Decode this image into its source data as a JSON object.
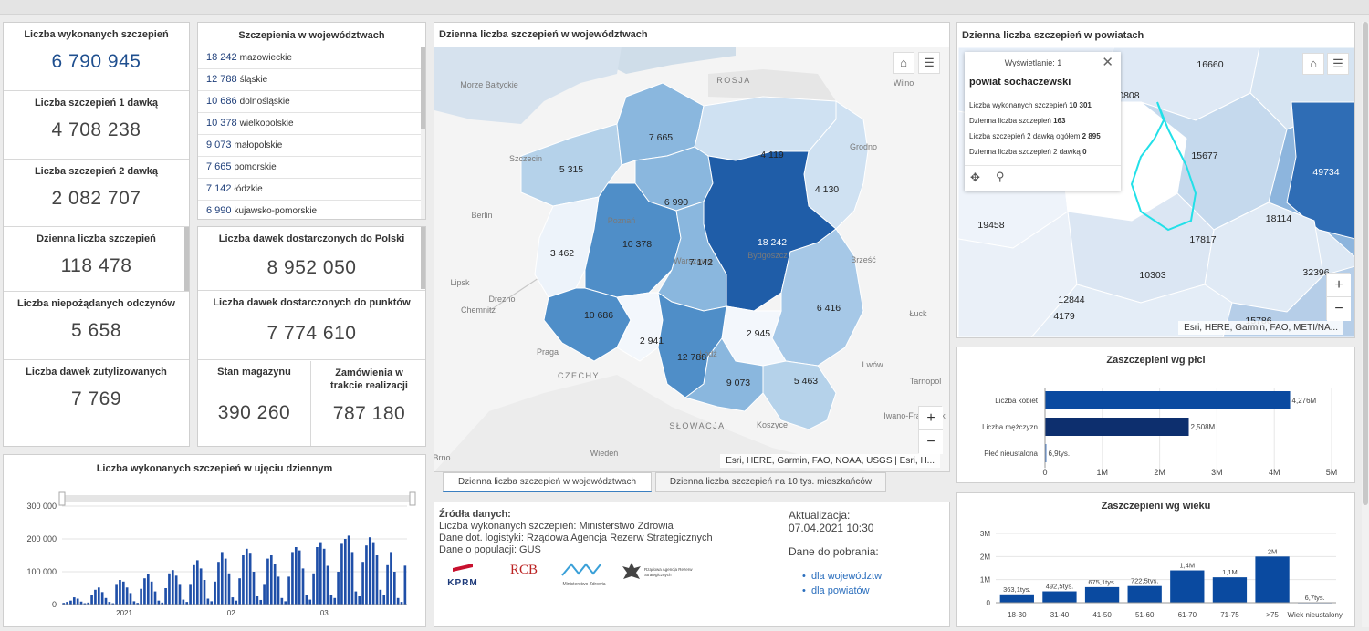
{
  "kpis": {
    "total": {
      "label": "Liczba wykonanych szczepień",
      "value": "6 790 945"
    },
    "dose1": {
      "label": "Liczba szczepień 1 dawką",
      "value": "4 708 238"
    },
    "dose2": {
      "label": "Liczba szczepień 2 dawką",
      "value": "2 082 707"
    },
    "daily": {
      "label": "Dzienna liczba szczepień",
      "value": "118 478"
    },
    "adverse": {
      "label": "Liczba niepożądanych odczynów",
      "value": "5 658"
    },
    "utilized": {
      "label": "Liczba dawek zutylizowanych",
      "value": "7 769"
    }
  },
  "regions_list": {
    "title": "Szczepienia w województwach",
    "items": [
      {
        "num": "18 242",
        "name": "mazowieckie"
      },
      {
        "num": "12 788",
        "name": "śląskie"
      },
      {
        "num": "10 686",
        "name": "dolnośląskie"
      },
      {
        "num": "10 378",
        "name": "wielkopolskie"
      },
      {
        "num": "9 073",
        "name": "małopolskie"
      },
      {
        "num": "7 665",
        "name": "pomorskie"
      },
      {
        "num": "7 142",
        "name": "łódzkie"
      },
      {
        "num": "6 990",
        "name": "kujawsko-pomorskie"
      }
    ]
  },
  "logistics": {
    "delivered_poland": {
      "label": "Liczba dawek dostarczonych do Polski",
      "value": "8 952 050"
    },
    "delivered_points": {
      "label": "Liczba dawek dostarczonych do punktów",
      "value": "7 774 610"
    },
    "stock": {
      "label": "Stan magazynu",
      "value": "390 260"
    },
    "orders": {
      "label": "Zamówienia w trakcie realizacji",
      "value": "787 180"
    }
  },
  "map_main": {
    "title": "Dzienna liczba szczepień w województwach",
    "attribution": "Esri, HERE, Garmin, FAO, NOAA, USGS | Esri, H...",
    "zoom_in": "+",
    "zoom_out": "−",
    "places": [
      "Morze Bałtyckie",
      "ROSJA",
      "Wilno",
      "Grodno",
      "Berlin",
      "Brześć",
      "Lipsk",
      "Drezno",
      "Chemnitz",
      "Praga",
      "CZECHY",
      "Łuck",
      "Lwów",
      "Tarnopol",
      "Iwano-Frankiwsk",
      "SŁOWACJA",
      "Koszyce",
      "Wiedeń",
      "Brno",
      "Szczecin",
      "Poznań",
      "Bydgoszcz",
      "Warszawa",
      "Łódź",
      "Kraków"
    ],
    "regions": [
      {
        "name": "zachodniopomorskie",
        "value": "5 315",
        "color": "#b5d2ea"
      },
      {
        "name": "pomorskie",
        "value": "7 665",
        "color": "#8ab7de"
      },
      {
        "name": "warmińsko-mazurskie",
        "value": "4 119",
        "color": "#cfe1f2"
      },
      {
        "name": "podlaskie",
        "value": "4 130",
        "color": "#cfe1f2"
      },
      {
        "name": "lubuskie",
        "value": "3 462",
        "color": "#edf3fa"
      },
      {
        "name": "kujawsko-pomorskie",
        "value": "6 990",
        "color": "#8ab7de"
      },
      {
        "name": "wielkopolskie",
        "value": "10 378",
        "color": "#4f8ec8"
      },
      {
        "name": "mazowieckie",
        "value": "18 242",
        "color": "#1f5da8"
      },
      {
        "name": "łódzkie",
        "value": "7 142",
        "color": "#8ab7de"
      },
      {
        "name": "lubelskie",
        "value": "6 416",
        "color": "#a6c8e7"
      },
      {
        "name": "dolnośląskie",
        "value": "10 686",
        "color": "#4f8ec8"
      },
      {
        "name": "opolskie",
        "value": "2 941",
        "color": "#f3f7fc"
      },
      {
        "name": "świętokrzyskie",
        "value": "2 945",
        "color": "#f3f7fc"
      },
      {
        "name": "śląskie",
        "value": "12 788",
        "color": "#4f8ec8"
      },
      {
        "name": "małopolskie",
        "value": "9 073",
        "color": "#8ab7de"
      },
      {
        "name": "podkarpackie",
        "value": "5 463",
        "color": "#b5d2ea"
      }
    ],
    "tabs": [
      "Dzienna liczba szczepień w województwach",
      "Dzienna liczba szczepień na 10 tys. mieszkańców"
    ]
  },
  "map_county": {
    "title": "Dzienna liczba szczepień w powiatach",
    "attribution": "Esri, HERE, Garmin, FAO, METI/NA...",
    "zoom_in": "+",
    "zoom_out": "−",
    "labels": [
      "16660",
      "10808",
      "15677",
      "49734",
      "19458",
      "18114",
      "17817",
      "10303",
      "32396",
      "12844",
      "4179",
      "15786"
    ],
    "popup": {
      "header": "Wyświetlanie: 1",
      "title": "powiat sochaczewski",
      "rows": [
        {
          "label": "Liczba wykonanych szczepień",
          "value": "10 301"
        },
        {
          "label": "Dzienna liczba szczepień",
          "value": "163"
        },
        {
          "label": "Liczba szczepień 2 dawką ogółem",
          "value": "2 895"
        },
        {
          "label": "Dzienna liczba szczepień 2 dawką",
          "value": "0"
        }
      ]
    }
  },
  "daily_chart": {
    "title": "Liczba wykonanych szczepień w ujęciu dziennym",
    "chart_data": {
      "type": "bar",
      "title": "Liczba wykonanych szczepień w ujęciu dziennym",
      "ylim": [
        0,
        300000
      ],
      "yticks": [
        "300 000",
        "200 000",
        "100 000",
        "0"
      ],
      "yticks_values": [
        300000,
        200000,
        100000,
        0
      ],
      "xticks": [
        "2021",
        "02",
        "03"
      ],
      "values": [
        5000,
        8000,
        12000,
        22000,
        18000,
        9000,
        4000,
        6000,
        30000,
        45000,
        52000,
        38000,
        20000,
        8000,
        4000,
        60000,
        75000,
        70000,
        52000,
        35000,
        10000,
        5000,
        48000,
        80000,
        92000,
        70000,
        40000,
        12000,
        6000,
        50000,
        95000,
        105000,
        88000,
        60000,
        15000,
        8000,
        60000,
        120000,
        135000,
        110000,
        75000,
        18000,
        10000,
        70000,
        130000,
        160000,
        140000,
        95000,
        22000,
        12000,
        80000,
        150000,
        170000,
        155000,
        100000,
        25000,
        14000,
        60000,
        140000,
        150000,
        125000,
        85000,
        20000,
        10000,
        85000,
        160000,
        175000,
        165000,
        110000,
        28000,
        15000,
        95000,
        175000,
        190000,
        170000,
        118000,
        30000,
        20000,
        100000,
        185000,
        200000,
        210000,
        160000,
        40000,
        25000,
        130000,
        180000,
        205000,
        190000,
        150000,
        45000,
        30000,
        120000,
        160000,
        100000,
        20000,
        8000,
        118478
      ]
    }
  },
  "sources": {
    "title": "Źródła danych:",
    "lines": [
      "Liczba wykonanych szczepień: Ministerstwo Zdrowia",
      "Dane dot. logistyki: Rządowa Agencja Rezerw Strategicznych",
      "Dane o populacji: GUS"
    ],
    "logos": [
      "KPRM",
      "RCB",
      "Ministerstwo Zdrowia",
      "Rządowa Agencja Rezerw Strategicznych"
    ],
    "update_label": "Aktualizacja:",
    "update_value": "07.04.2021 10:30",
    "download_label": "Dane do pobrania:",
    "links": [
      "dla województw",
      "dla powiatów"
    ]
  },
  "gender_chart": {
    "title": "Zaszczepieni wg płci",
    "chart_data": {
      "type": "bar",
      "orientation": "horizontal",
      "title": "Zaszczepieni wg płci",
      "categories": [
        "Liczba kobiet",
        "Liczba mężczyzn",
        "Płeć nieustalona"
      ],
      "values": [
        4276000,
        2508000,
        6900
      ],
      "data_labels": [
        "4,276M",
        "2,508M",
        "6,9tys."
      ],
      "xlim": [
        0,
        5000000
      ],
      "xticks": [
        "0",
        "1M",
        "2M",
        "3M",
        "4M",
        "5M"
      ],
      "colors": [
        "#0a4aa0",
        "#0d2f6e",
        "#4e7fc4"
      ]
    }
  },
  "age_chart": {
    "title": "Zaszczepieni wg wieku",
    "chart_data": {
      "type": "bar",
      "title": "Zaszczepieni wg wieku",
      "categories": [
        "18-30",
        "31-40",
        "41-50",
        "51-60",
        "61-70",
        "71-75",
        ">75",
        "Wiek nieustalony"
      ],
      "values": [
        363100,
        492500,
        675100,
        722500,
        1400000,
        1100000,
        2000000,
        6700
      ],
      "data_labels": [
        "363,1tys.",
        "492,5tys.",
        "675,1tys.",
        "722,5tys.",
        "1,4M",
        "1,1M",
        "2M",
        "6,7tys."
      ],
      "ylim": [
        0,
        3000000
      ],
      "yticks": [
        "3M",
        "2M",
        "1M",
        "0"
      ],
      "yticks_values": [
        3000000,
        2000000,
        1000000,
        0
      ],
      "color": "#0a4aa0"
    }
  }
}
